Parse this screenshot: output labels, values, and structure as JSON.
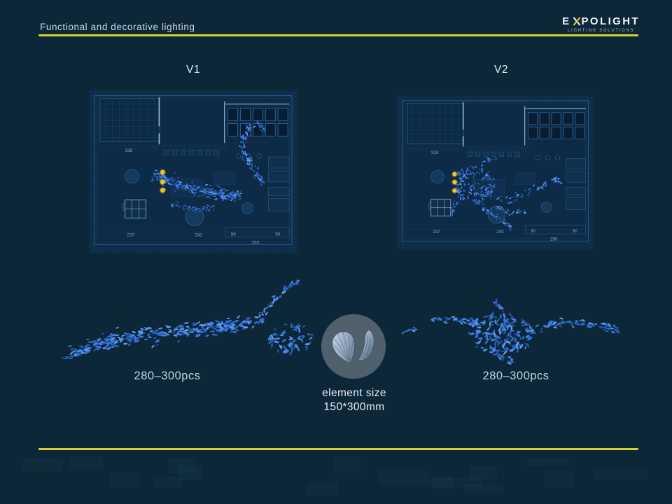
{
  "header": {
    "title": "Functional and decorative lighting",
    "logo": {
      "prefix": "E",
      "suffix": "POLIGHT",
      "tagline": "LIGHTING SOLUTIONS"
    }
  },
  "variants": [
    {
      "label": "V1",
      "count_label": "280–300pcs"
    },
    {
      "label": "V2",
      "count_label": "280–300pcs"
    }
  ],
  "element_info": {
    "line1": "element size",
    "line2": "150*300mm"
  },
  "plan": {
    "side_dimension": "328",
    "bottom_dimensions": [
      "237",
      "243",
      "90",
      "90"
    ],
    "bottom_total": "250"
  },
  "colors": {
    "background": "#0c2838",
    "plan_bg": "#0d2b46",
    "accent_yellow": "#decc33",
    "title_color": "#cdd6da",
    "dot_yellow": "#f5c41e",
    "fish_palette": [
      "#2a63c4",
      "#3372dd",
      "#4a86e8",
      "#6099ef",
      "#27549e"
    ],
    "plan_line_faint": "#1b4067",
    "plan_line_mid": "#2c5e8f",
    "plan_line_bright": "#92bbd8",
    "circle_bg": "#50606d"
  }
}
